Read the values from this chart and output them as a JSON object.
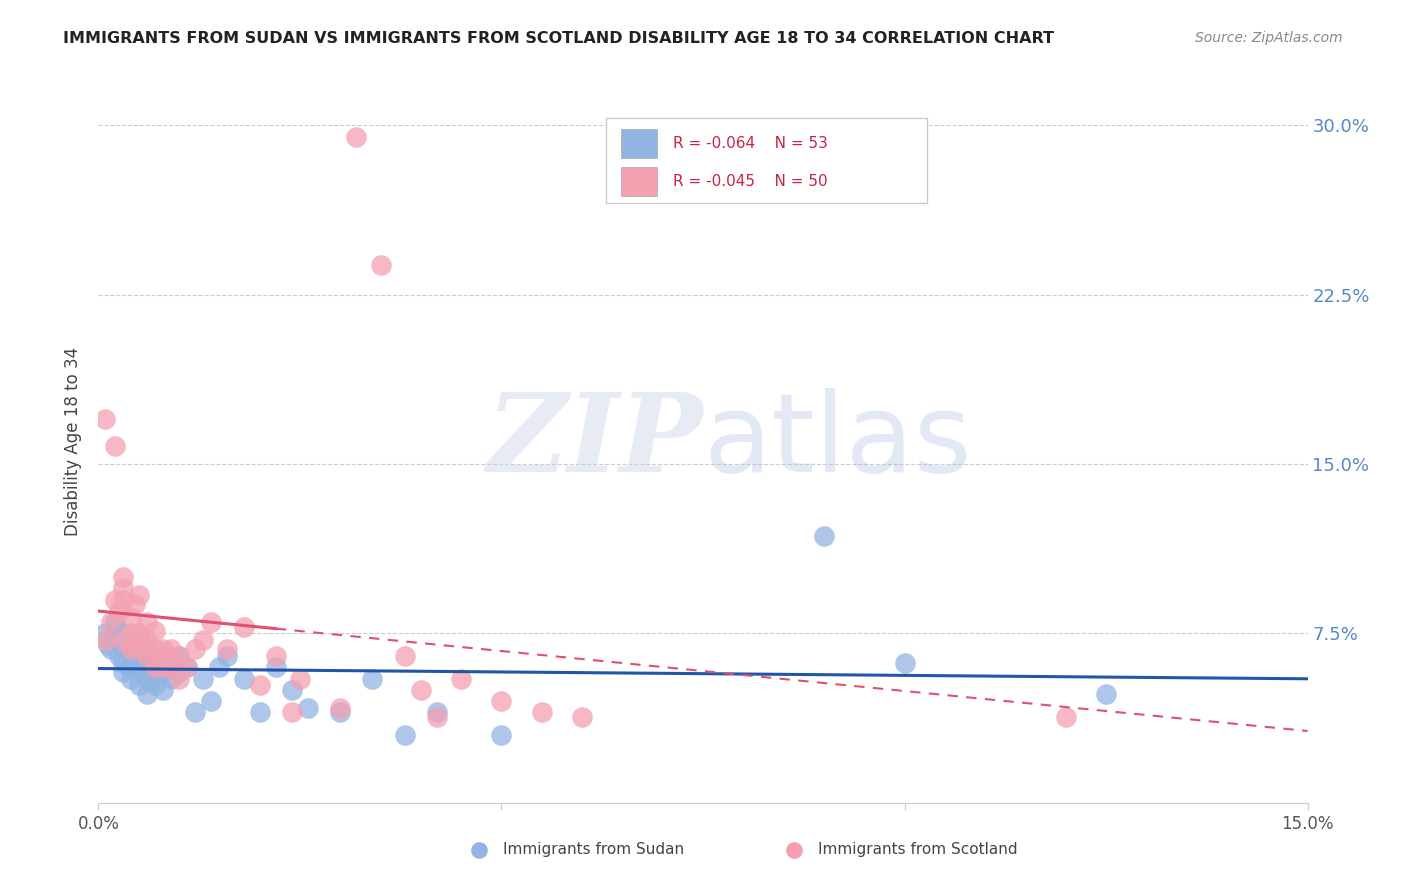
{
  "title": "IMMIGRANTS FROM SUDAN VS IMMIGRANTS FROM SCOTLAND DISABILITY AGE 18 TO 34 CORRELATION CHART",
  "source": "Source: ZipAtlas.com",
  "ylabel": "Disability Age 18 to 34",
  "xlim": [
    0.0,
    0.15
  ],
  "ylim": [
    0.0,
    0.32
  ],
  "sudan_color": "#92b4e3",
  "scotland_color": "#f4a0b0",
  "trendline_sudan_color": "#2255aa",
  "trendline_scotland_color": "#e05070",
  "right_tick_color": "#5588cc",
  "grid_color": "#cccccc",
  "sudan_R": "-0.064",
  "sudan_N": "53",
  "scotland_R": "-0.045",
  "scotland_N": "50",
  "legend_label_1": "Immigrants from Sudan",
  "legend_label_2": "Immigrants from Scotland",
  "sudan_x": [
    0.0008,
    0.0012,
    0.0015,
    0.002,
    0.002,
    0.0025,
    0.003,
    0.003,
    0.003,
    0.003,
    0.004,
    0.004,
    0.004,
    0.004,
    0.0045,
    0.005,
    0.005,
    0.005,
    0.005,
    0.006,
    0.006,
    0.006,
    0.006,
    0.0065,
    0.007,
    0.007,
    0.007,
    0.008,
    0.008,
    0.008,
    0.009,
    0.009,
    0.01,
    0.01,
    0.011,
    0.012,
    0.013,
    0.014,
    0.015,
    0.016,
    0.018,
    0.02,
    0.022,
    0.024,
    0.026,
    0.03,
    0.034,
    0.038,
    0.042,
    0.05,
    0.09,
    0.1,
    0.125
  ],
  "sudan_y": [
    0.075,
    0.07,
    0.068,
    0.078,
    0.08,
    0.065,
    0.058,
    0.062,
    0.068,
    0.075,
    0.055,
    0.06,
    0.065,
    0.07,
    0.06,
    0.052,
    0.058,
    0.065,
    0.072,
    0.048,
    0.055,
    0.06,
    0.068,
    0.055,
    0.052,
    0.058,
    0.065,
    0.05,
    0.058,
    0.065,
    0.055,
    0.062,
    0.058,
    0.065,
    0.06,
    0.04,
    0.055,
    0.045,
    0.06,
    0.065,
    0.055,
    0.04,
    0.06,
    0.05,
    0.042,
    0.04,
    0.055,
    0.03,
    0.04,
    0.03,
    0.118,
    0.062,
    0.048
  ],
  "scotland_x": [
    0.0008,
    0.001,
    0.0015,
    0.002,
    0.002,
    0.0025,
    0.003,
    0.003,
    0.003,
    0.003,
    0.004,
    0.004,
    0.004,
    0.0045,
    0.005,
    0.005,
    0.005,
    0.006,
    0.006,
    0.006,
    0.007,
    0.007,
    0.007,
    0.008,
    0.008,
    0.009,
    0.009,
    0.01,
    0.01,
    0.011,
    0.012,
    0.013,
    0.014,
    0.016,
    0.018,
    0.02,
    0.022,
    0.024,
    0.025,
    0.03,
    0.032,
    0.035,
    0.038,
    0.04,
    0.042,
    0.045,
    0.05,
    0.055,
    0.06,
    0.12
  ],
  "scotland_y": [
    0.17,
    0.072,
    0.08,
    0.158,
    0.09,
    0.085,
    0.09,
    0.095,
    0.1,
    0.072,
    0.068,
    0.075,
    0.082,
    0.088,
    0.068,
    0.075,
    0.092,
    0.065,
    0.072,
    0.08,
    0.06,
    0.068,
    0.076,
    0.06,
    0.068,
    0.06,
    0.068,
    0.055,
    0.065,
    0.06,
    0.068,
    0.072,
    0.08,
    0.068,
    0.078,
    0.052,
    0.065,
    0.04,
    0.055,
    0.042,
    0.295,
    0.238,
    0.065,
    0.05,
    0.038,
    0.055,
    0.045,
    0.04,
    0.038,
    0.038
  ]
}
